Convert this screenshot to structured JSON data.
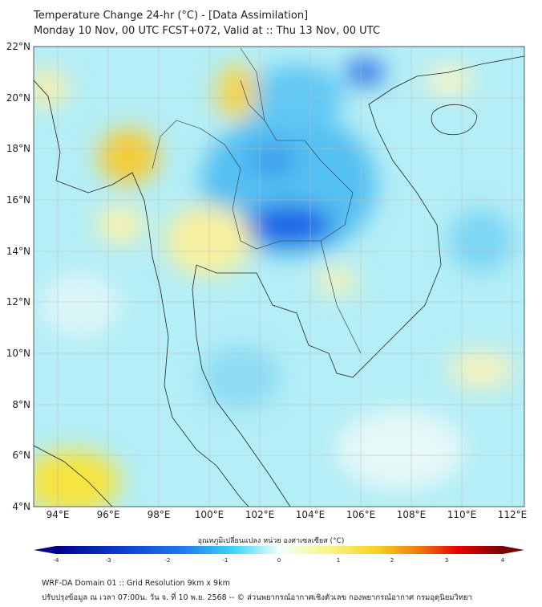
{
  "title": {
    "line1": "Temperature Change 24-hr (°C) - [Data Assimilation]",
    "line2": "Monday 10 Nov, 00 UTC FCST+072, Valid at :: Thu 13 Nov, 00 UTC"
  },
  "map": {
    "lat_labels": [
      "22°N",
      "20°N",
      "18°N",
      "16°N",
      "14°N",
      "12°N",
      "10°N",
      "8°N",
      "6°N",
      "4°N"
    ],
    "lon_labels": [
      "94°E",
      "96°E",
      "98°E",
      "100°E",
      "102°E",
      "104°E",
      "106°E",
      "108°E",
      "110°E",
      "112°E"
    ]
  },
  "colorbar": {
    "title": "อุณหภูมิเปลี่ยนแปลง หน่วย องศาเซลเซียส (°C)",
    "ticks": [
      "-4",
      "-3",
      "-2",
      "-1",
      "0",
      "1",
      "2",
      "3",
      "4"
    ],
    "colors": [
      "#00008c",
      "#0a3ccc",
      "#1e78f0",
      "#3cc8f5",
      "#e8fcfc",
      "#f8f890",
      "#f8d020",
      "#f07010",
      "#e80000",
      "#780000"
    ]
  },
  "footer": {
    "line1": "WRF-DA Domain 01 :: Grid Resolution 9km x 9km",
    "line2": "ปรับปรุงข้อมูล ณ เวลา 07:00น. วัน จ. ที่ 10 พ.ย. 2568 -- © ส่วนพยากรณ์อากาศเชิงตัวเลข กองพยากรณ์อากาศ กรมอุตุนิยมวิทยา"
  }
}
